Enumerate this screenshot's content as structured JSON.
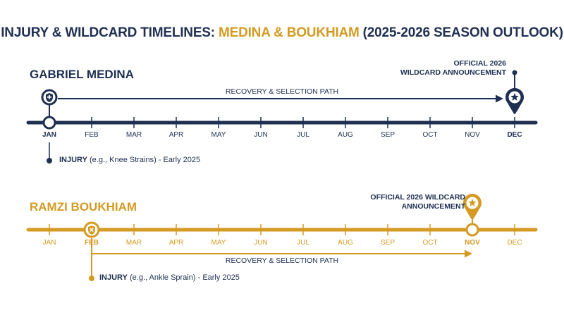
{
  "title": {
    "part1": "INJURY & WILDCARD TIMELINES: ",
    "part2": "MEDINA & BOUKHIAM",
    "part3": " (2025-2026 SEASON OUTLOOK)"
  },
  "months": [
    "JAN",
    "FEB",
    "MAR",
    "APR",
    "MAY",
    "JUN",
    "JUL",
    "AUG",
    "SEP",
    "OCT",
    "NOV",
    "DEC"
  ],
  "colors": {
    "navy": "#1e2f52",
    "gold": "#d49a22"
  },
  "timelines": [
    {
      "athlete": "GABRIEL MEDINA",
      "color": "#1e2f52",
      "injury_month_index": 0,
      "announcement_month_index": 11,
      "path_label": "RECOVERY & SELECTION PATH",
      "announcement_label_line1": "OFFICIAL 2026",
      "announcement_label_line2": "WILDCARD ANNOUNCEMENT",
      "injury_strong": "INJURY",
      "injury_detail": " (e.g., Knee Strains) - Early 2025",
      "injury_icon": "shield-plus-icon",
      "announcement_icon": "star-icon"
    },
    {
      "athlete": "RAMZI BOUKHIAM",
      "color": "#d49a22",
      "injury_month_index": 1,
      "announcement_month_index": 10,
      "path_label": "RECOVERY & SELECTION PATH",
      "announcement_label_line1": "OFFICIAL 2026 WILDCARD",
      "announcement_label_line2": "ANNOUNCEMENT",
      "injury_strong": "INJURY",
      "injury_detail": " (e.g., Ankle Sprain) - Early 2025",
      "injury_icon": "shield-cross-icon",
      "announcement_icon": "star-icon"
    }
  ]
}
